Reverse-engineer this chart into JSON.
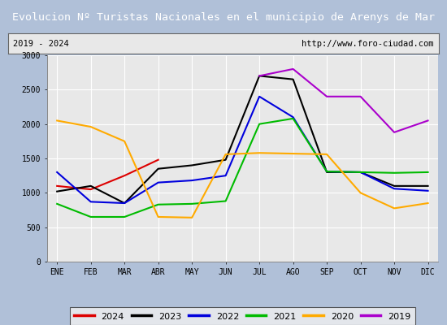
{
  "title": "Evolucion Nº Turistas Nacionales en el municipio de Arenys de Mar",
  "subtitle_left": "2019 - 2024",
  "subtitle_right": "http://www.foro-ciudad.com",
  "title_bg_color": "#4f7fc4",
  "title_text_color": "#ffffff",
  "subtitle_bg_color": "#e8e8e8",
  "plot_bg_color": "#e8e8e8",
  "fig_bg_color": "#b0c0d8",
  "months": [
    "ENE",
    "FEB",
    "MAR",
    "ABR",
    "MAY",
    "JUN",
    "JUL",
    "AGO",
    "SEP",
    "OCT",
    "NOV",
    "DIC"
  ],
  "ylim": [
    0,
    3000
  ],
  "yticks": [
    0,
    500,
    1000,
    1500,
    2000,
    2500,
    3000
  ],
  "series": {
    "2024": {
      "color": "#dd0000",
      "data": [
        1100,
        1050,
        1250,
        1480,
        null,
        null,
        null,
        null,
        null,
        null,
        null,
        null
      ]
    },
    "2023": {
      "color": "#000000",
      "data": [
        1020,
        1100,
        850,
        1350,
        1400,
        1480,
        2700,
        2650,
        1300,
        1300,
        1100,
        1100
      ]
    },
    "2022": {
      "color": "#0000dd",
      "data": [
        1300,
        870,
        850,
        1150,
        1180,
        1250,
        2400,
        2100,
        1310,
        1300,
        1060,
        1030
      ]
    },
    "2021": {
      "color": "#00bb00",
      "data": [
        840,
        650,
        650,
        830,
        840,
        880,
        2000,
        2080,
        1310,
        1300,
        1290,
        1300
      ]
    },
    "2020": {
      "color": "#ffaa00",
      "data": [
        2050,
        1960,
        1750,
        650,
        640,
        1560,
        1580,
        1570,
        1560,
        1000,
        775,
        850
      ]
    },
    "2019": {
      "color": "#aa00cc",
      "data": [
        null,
        null,
        null,
        null,
        null,
        null,
        2700,
        2800,
        2400,
        2400,
        1880,
        2050
      ]
    }
  },
  "legend_order": [
    "2024",
    "2023",
    "2022",
    "2021",
    "2020",
    "2019"
  ]
}
